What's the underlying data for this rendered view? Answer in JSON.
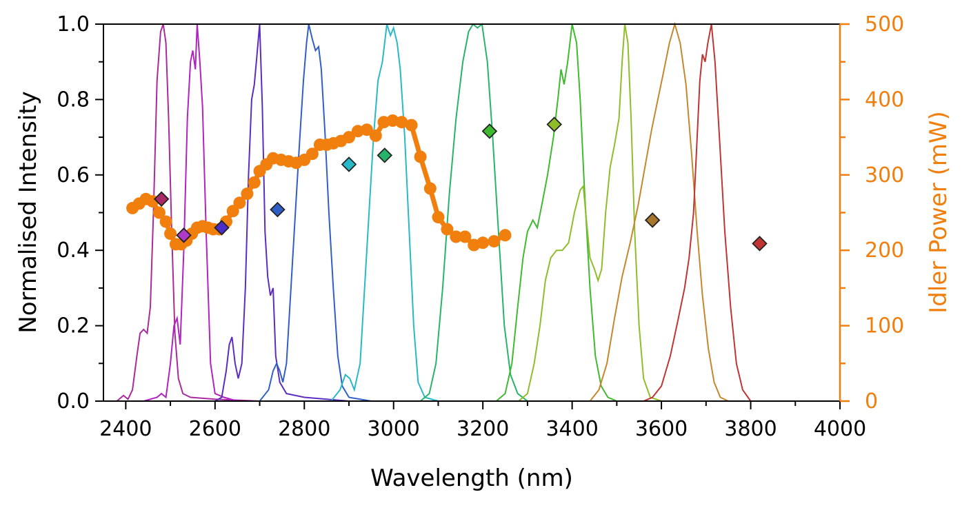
{
  "chart_data": {
    "type": "line",
    "xlabel": "Wavelength (nm)",
    "ylabel": "Normalised Intensity",
    "y2label": "Idler Power (mW)",
    "xlim": [
      2350,
      4000
    ],
    "ylim": [
      0,
      1.0
    ],
    "y2lim": [
      0,
      500
    ],
    "x_ticks": [
      2400,
      2600,
      2800,
      3000,
      3200,
      3400,
      3600,
      3800,
      4000
    ],
    "y_ticks": [
      0.0,
      0.2,
      0.4,
      0.6,
      0.8,
      1.0
    ],
    "y2_ticks": [
      0,
      100,
      200,
      300,
      400,
      500
    ],
    "grid": false,
    "colors": {
      "axis_left": "#000000",
      "axis_right": "#f07f0e",
      "power_line": "#f07f0e"
    },
    "spectra": [
      {
        "color": "#a92a9e",
        "points": [
          [
            2380,
            0
          ],
          [
            2395,
            0.015
          ],
          [
            2405,
            0.005
          ],
          [
            2415,
            0.03
          ],
          [
            2425,
            0.12
          ],
          [
            2432,
            0.18
          ],
          [
            2440,
            0.19
          ],
          [
            2448,
            0.18
          ],
          [
            2455,
            0.25
          ],
          [
            2462,
            0.5
          ],
          [
            2470,
            0.85
          ],
          [
            2478,
            0.98
          ],
          [
            2484,
            1.0
          ],
          [
            2490,
            0.95
          ],
          [
            2496,
            0.75
          ],
          [
            2503,
            0.45
          ],
          [
            2510,
            0.18
          ],
          [
            2518,
            0.06
          ],
          [
            2528,
            0.02
          ],
          [
            2545,
            0.01
          ],
          [
            2600,
            0.005
          ],
          [
            2700,
            0
          ]
        ]
      },
      {
        "color": "#b023c0",
        "points": [
          [
            2440,
            0
          ],
          [
            2470,
            0.01
          ],
          [
            2480,
            0.02
          ],
          [
            2490,
            0.01
          ],
          [
            2500,
            0.1
          ],
          [
            2508,
            0.2
          ],
          [
            2515,
            0.22
          ],
          [
            2522,
            0.15
          ],
          [
            2530,
            0.4
          ],
          [
            2538,
            0.75
          ],
          [
            2545,
            0.9
          ],
          [
            2550,
            0.93
          ],
          [
            2556,
            0.88
          ],
          [
            2560,
            1.0
          ],
          [
            2566,
            0.9
          ],
          [
            2572,
            0.78
          ],
          [
            2580,
            0.45
          ],
          [
            2590,
            0.1
          ],
          [
            2600,
            0.02
          ],
          [
            2620,
            0.01
          ],
          [
            2650,
            0
          ]
        ]
      },
      {
        "color": "#5b2cc0",
        "points": [
          [
            2600,
            0
          ],
          [
            2615,
            0.01
          ],
          [
            2625,
            0.08
          ],
          [
            2632,
            0.15
          ],
          [
            2638,
            0.17
          ],
          [
            2645,
            0.1
          ],
          [
            2652,
            0.06
          ],
          [
            2660,
            0.1
          ],
          [
            2668,
            0.3
          ],
          [
            2675,
            0.6
          ],
          [
            2682,
            0.8
          ],
          [
            2688,
            0.84
          ],
          [
            2694,
            0.92
          ],
          [
            2700,
            1.0
          ],
          [
            2706,
            0.78
          ],
          [
            2712,
            0.45
          ],
          [
            2718,
            0.33
          ],
          [
            2724,
            0.28
          ],
          [
            2730,
            0.3
          ],
          [
            2736,
            0.12
          ],
          [
            2745,
            0.05
          ],
          [
            2760,
            0.02
          ],
          [
            2800,
            0.01
          ],
          [
            2900,
            0
          ]
        ]
      },
      {
        "color": "#2e5ec6",
        "points": [
          [
            2700,
            0
          ],
          [
            2720,
            0.03
          ],
          [
            2730,
            0.08
          ],
          [
            2738,
            0.1
          ],
          [
            2745,
            0.08
          ],
          [
            2752,
            0.05
          ],
          [
            2760,
            0.1
          ],
          [
            2770,
            0.3
          ],
          [
            2780,
            0.5
          ],
          [
            2790,
            0.7
          ],
          [
            2798,
            0.85
          ],
          [
            2805,
            0.95
          ],
          [
            2810,
            1.0
          ],
          [
            2818,
            0.96
          ],
          [
            2825,
            0.93
          ],
          [
            2832,
            0.94
          ],
          [
            2838,
            0.88
          ],
          [
            2846,
            0.72
          ],
          [
            2855,
            0.5
          ],
          [
            2865,
            0.3
          ],
          [
            2875,
            0.12
          ],
          [
            2885,
            0.04
          ],
          [
            2900,
            0.01
          ],
          [
            2950,
            0
          ]
        ]
      },
      {
        "color": "#28b8c8",
        "points": [
          [
            2860,
            0
          ],
          [
            2880,
            0.03
          ],
          [
            2892,
            0.07
          ],
          [
            2902,
            0.06
          ],
          [
            2912,
            0.03
          ],
          [
            2925,
            0.1
          ],
          [
            2940,
            0.4
          ],
          [
            2955,
            0.7
          ],
          [
            2965,
            0.85
          ],
          [
            2975,
            0.9
          ],
          [
            2985,
            1.0
          ],
          [
            2993,
            0.97
          ],
          [
            3000,
            0.99
          ],
          [
            3008,
            0.95
          ],
          [
            3015,
            0.88
          ],
          [
            3025,
            0.7
          ],
          [
            3035,
            0.45
          ],
          [
            3045,
            0.2
          ],
          [
            3055,
            0.05
          ],
          [
            3070,
            0.01
          ],
          [
            3100,
            0
          ]
        ]
      },
      {
        "color": "#27b36a",
        "points": [
          [
            3060,
            0
          ],
          [
            3080,
            0.02
          ],
          [
            3095,
            0.1
          ],
          [
            3110,
            0.3
          ],
          [
            3125,
            0.55
          ],
          [
            3140,
            0.75
          ],
          [
            3155,
            0.9
          ],
          [
            3168,
            0.98
          ],
          [
            3178,
            1.0
          ],
          [
            3188,
            0.99
          ],
          [
            3198,
            1.0
          ],
          [
            3210,
            0.9
          ],
          [
            3222,
            0.7
          ],
          [
            3235,
            0.45
          ],
          [
            3248,
            0.2
          ],
          [
            3262,
            0.07
          ],
          [
            3278,
            0.02
          ],
          [
            3300,
            0
          ]
        ]
      },
      {
        "color": "#3fb930",
        "points": [
          [
            3230,
            0
          ],
          [
            3250,
            0.02
          ],
          [
            3265,
            0.1
          ],
          [
            3278,
            0.25
          ],
          [
            3290,
            0.38
          ],
          [
            3300,
            0.45
          ],
          [
            3312,
            0.48
          ],
          [
            3322,
            0.46
          ],
          [
            3332,
            0.52
          ],
          [
            3345,
            0.6
          ],
          [
            3358,
            0.7
          ],
          [
            3368,
            0.8
          ],
          [
            3375,
            0.88
          ],
          [
            3382,
            0.84
          ],
          [
            3390,
            0.9
          ],
          [
            3400,
            1.0
          ],
          [
            3410,
            0.95
          ],
          [
            3418,
            0.8
          ],
          [
            3428,
            0.55
          ],
          [
            3440,
            0.3
          ],
          [
            3452,
            0.12
          ],
          [
            3465,
            0.04
          ],
          [
            3480,
            0.01
          ],
          [
            3500,
            0
          ]
        ]
      },
      {
        "color": "#8fbd2a",
        "points": [
          [
            3280,
            0
          ],
          [
            3300,
            0.02
          ],
          [
            3315,
            0.1
          ],
          [
            3328,
            0.2
          ],
          [
            3340,
            0.32
          ],
          [
            3352,
            0.38
          ],
          [
            3365,
            0.4
          ],
          [
            3378,
            0.4
          ],
          [
            3392,
            0.42
          ],
          [
            3405,
            0.5
          ],
          [
            3418,
            0.56
          ],
          [
            3425,
            0.57
          ],
          [
            3432,
            0.48
          ],
          [
            3440,
            0.38
          ],
          [
            3450,
            0.35
          ],
          [
            3458,
            0.32
          ],
          [
            3466,
            0.35
          ],
          [
            3475,
            0.5
          ],
          [
            3485,
            0.62
          ],
          [
            3495,
            0.68
          ],
          [
            3505,
            0.75
          ],
          [
            3512,
            0.9
          ],
          [
            3518,
            1.0
          ],
          [
            3525,
            0.95
          ],
          [
            3532,
            0.75
          ],
          [
            3540,
            0.45
          ],
          [
            3550,
            0.2
          ],
          [
            3560,
            0.06
          ],
          [
            3575,
            0.01
          ],
          [
            3600,
            0
          ]
        ]
      },
      {
        "color": "#c7852c",
        "points": [
          [
            3440,
            0
          ],
          [
            3460,
            0.03
          ],
          [
            3478,
            0.1
          ],
          [
            3495,
            0.22
          ],
          [
            3512,
            0.33
          ],
          [
            3530,
            0.42
          ],
          [
            3548,
            0.52
          ],
          [
            3563,
            0.62
          ],
          [
            3578,
            0.72
          ],
          [
            3592,
            0.8
          ],
          [
            3606,
            0.88
          ],
          [
            3618,
            0.95
          ],
          [
            3630,
            1.0
          ],
          [
            3642,
            0.95
          ],
          [
            3655,
            0.84
          ],
          [
            3668,
            0.65
          ],
          [
            3680,
            0.45
          ],
          [
            3692,
            0.28
          ],
          [
            3705,
            0.14
          ],
          [
            3718,
            0.05
          ],
          [
            3732,
            0.01
          ],
          [
            3750,
            0
          ]
        ]
      },
      {
        "color": "#c03434",
        "points": [
          [
            3560,
            0
          ],
          [
            3580,
            0.01
          ],
          [
            3600,
            0.04
          ],
          [
            3620,
            0.12
          ],
          [
            3638,
            0.22
          ],
          [
            3652,
            0.3
          ],
          [
            3662,
            0.38
          ],
          [
            3672,
            0.5
          ],
          [
            3680,
            0.7
          ],
          [
            3686,
            0.85
          ],
          [
            3692,
            0.92
          ],
          [
            3698,
            0.9
          ],
          [
            3704,
            0.95
          ],
          [
            3712,
            1.0
          ],
          [
            3720,
            0.9
          ],
          [
            3730,
            0.7
          ],
          [
            3742,
            0.45
          ],
          [
            3755,
            0.25
          ],
          [
            3768,
            0.1
          ],
          [
            3782,
            0.03
          ],
          [
            3800,
            0
          ]
        ]
      }
    ],
    "power_series": {
      "name": "Idler Power",
      "points": [
        [
          2415,
          256
        ],
        [
          2430,
          262
        ],
        [
          2445,
          268
        ],
        [
          2460,
          265
        ],
        [
          2475,
          250
        ],
        [
          2490,
          238
        ],
        [
          2500,
          222
        ],
        [
          2512,
          208
        ],
        [
          2524,
          208
        ],
        [
          2536,
          213
        ],
        [
          2548,
          222
        ],
        [
          2560,
          230
        ],
        [
          2572,
          232
        ],
        [
          2584,
          230
        ],
        [
          2596,
          228
        ],
        [
          2610,
          228
        ],
        [
          2625,
          238
        ],
        [
          2640,
          252
        ],
        [
          2655,
          263
        ],
        [
          2672,
          275
        ],
        [
          2688,
          290
        ],
        [
          2700,
          305
        ],
        [
          2715,
          314
        ],
        [
          2730,
          322
        ],
        [
          2748,
          320
        ],
        [
          2765,
          318
        ],
        [
          2782,
          316
        ],
        [
          2800,
          320
        ],
        [
          2818,
          328
        ],
        [
          2835,
          340
        ],
        [
          2850,
          340
        ],
        [
          2865,
          342
        ],
        [
          2882,
          345
        ],
        [
          2900,
          350
        ],
        [
          2920,
          358
        ],
        [
          2940,
          360
        ],
        [
          2960,
          352
        ],
        [
          2978,
          370
        ],
        [
          2998,
          372
        ],
        [
          3018,
          370
        ],
        [
          3040,
          366
        ],
        [
          3060,
          324
        ],
        [
          3082,
          282
        ],
        [
          3100,
          244
        ],
        [
          3120,
          228
        ],
        [
          3140,
          218
        ],
        [
          3160,
          218
        ],
        [
          3180,
          207
        ],
        [
          3200,
          210
        ],
        [
          3225,
          212
        ],
        [
          3250,
          220
        ]
      ]
    },
    "markers": [
      {
        "x": 2480,
        "y": 268,
        "color": "#a92a66"
      },
      {
        "x": 2530,
        "y": 220,
        "color": "#b03ac8"
      },
      {
        "x": 2615,
        "y": 230,
        "color": "#4a2ec8"
      },
      {
        "x": 2740,
        "y": 254,
        "color": "#2e5ec6"
      },
      {
        "x": 2900,
        "y": 314,
        "color": "#28b8c8"
      },
      {
        "x": 2980,
        "y": 326,
        "color": "#27b36a"
      },
      {
        "x": 3215,
        "y": 358,
        "color": "#3fb930"
      },
      {
        "x": 3360,
        "y": 367,
        "color": "#8fbd2a"
      },
      {
        "x": 3580,
        "y": 240,
        "color": "#a5762c"
      },
      {
        "x": 3820,
        "y": 209,
        "color": "#c03434"
      }
    ]
  }
}
